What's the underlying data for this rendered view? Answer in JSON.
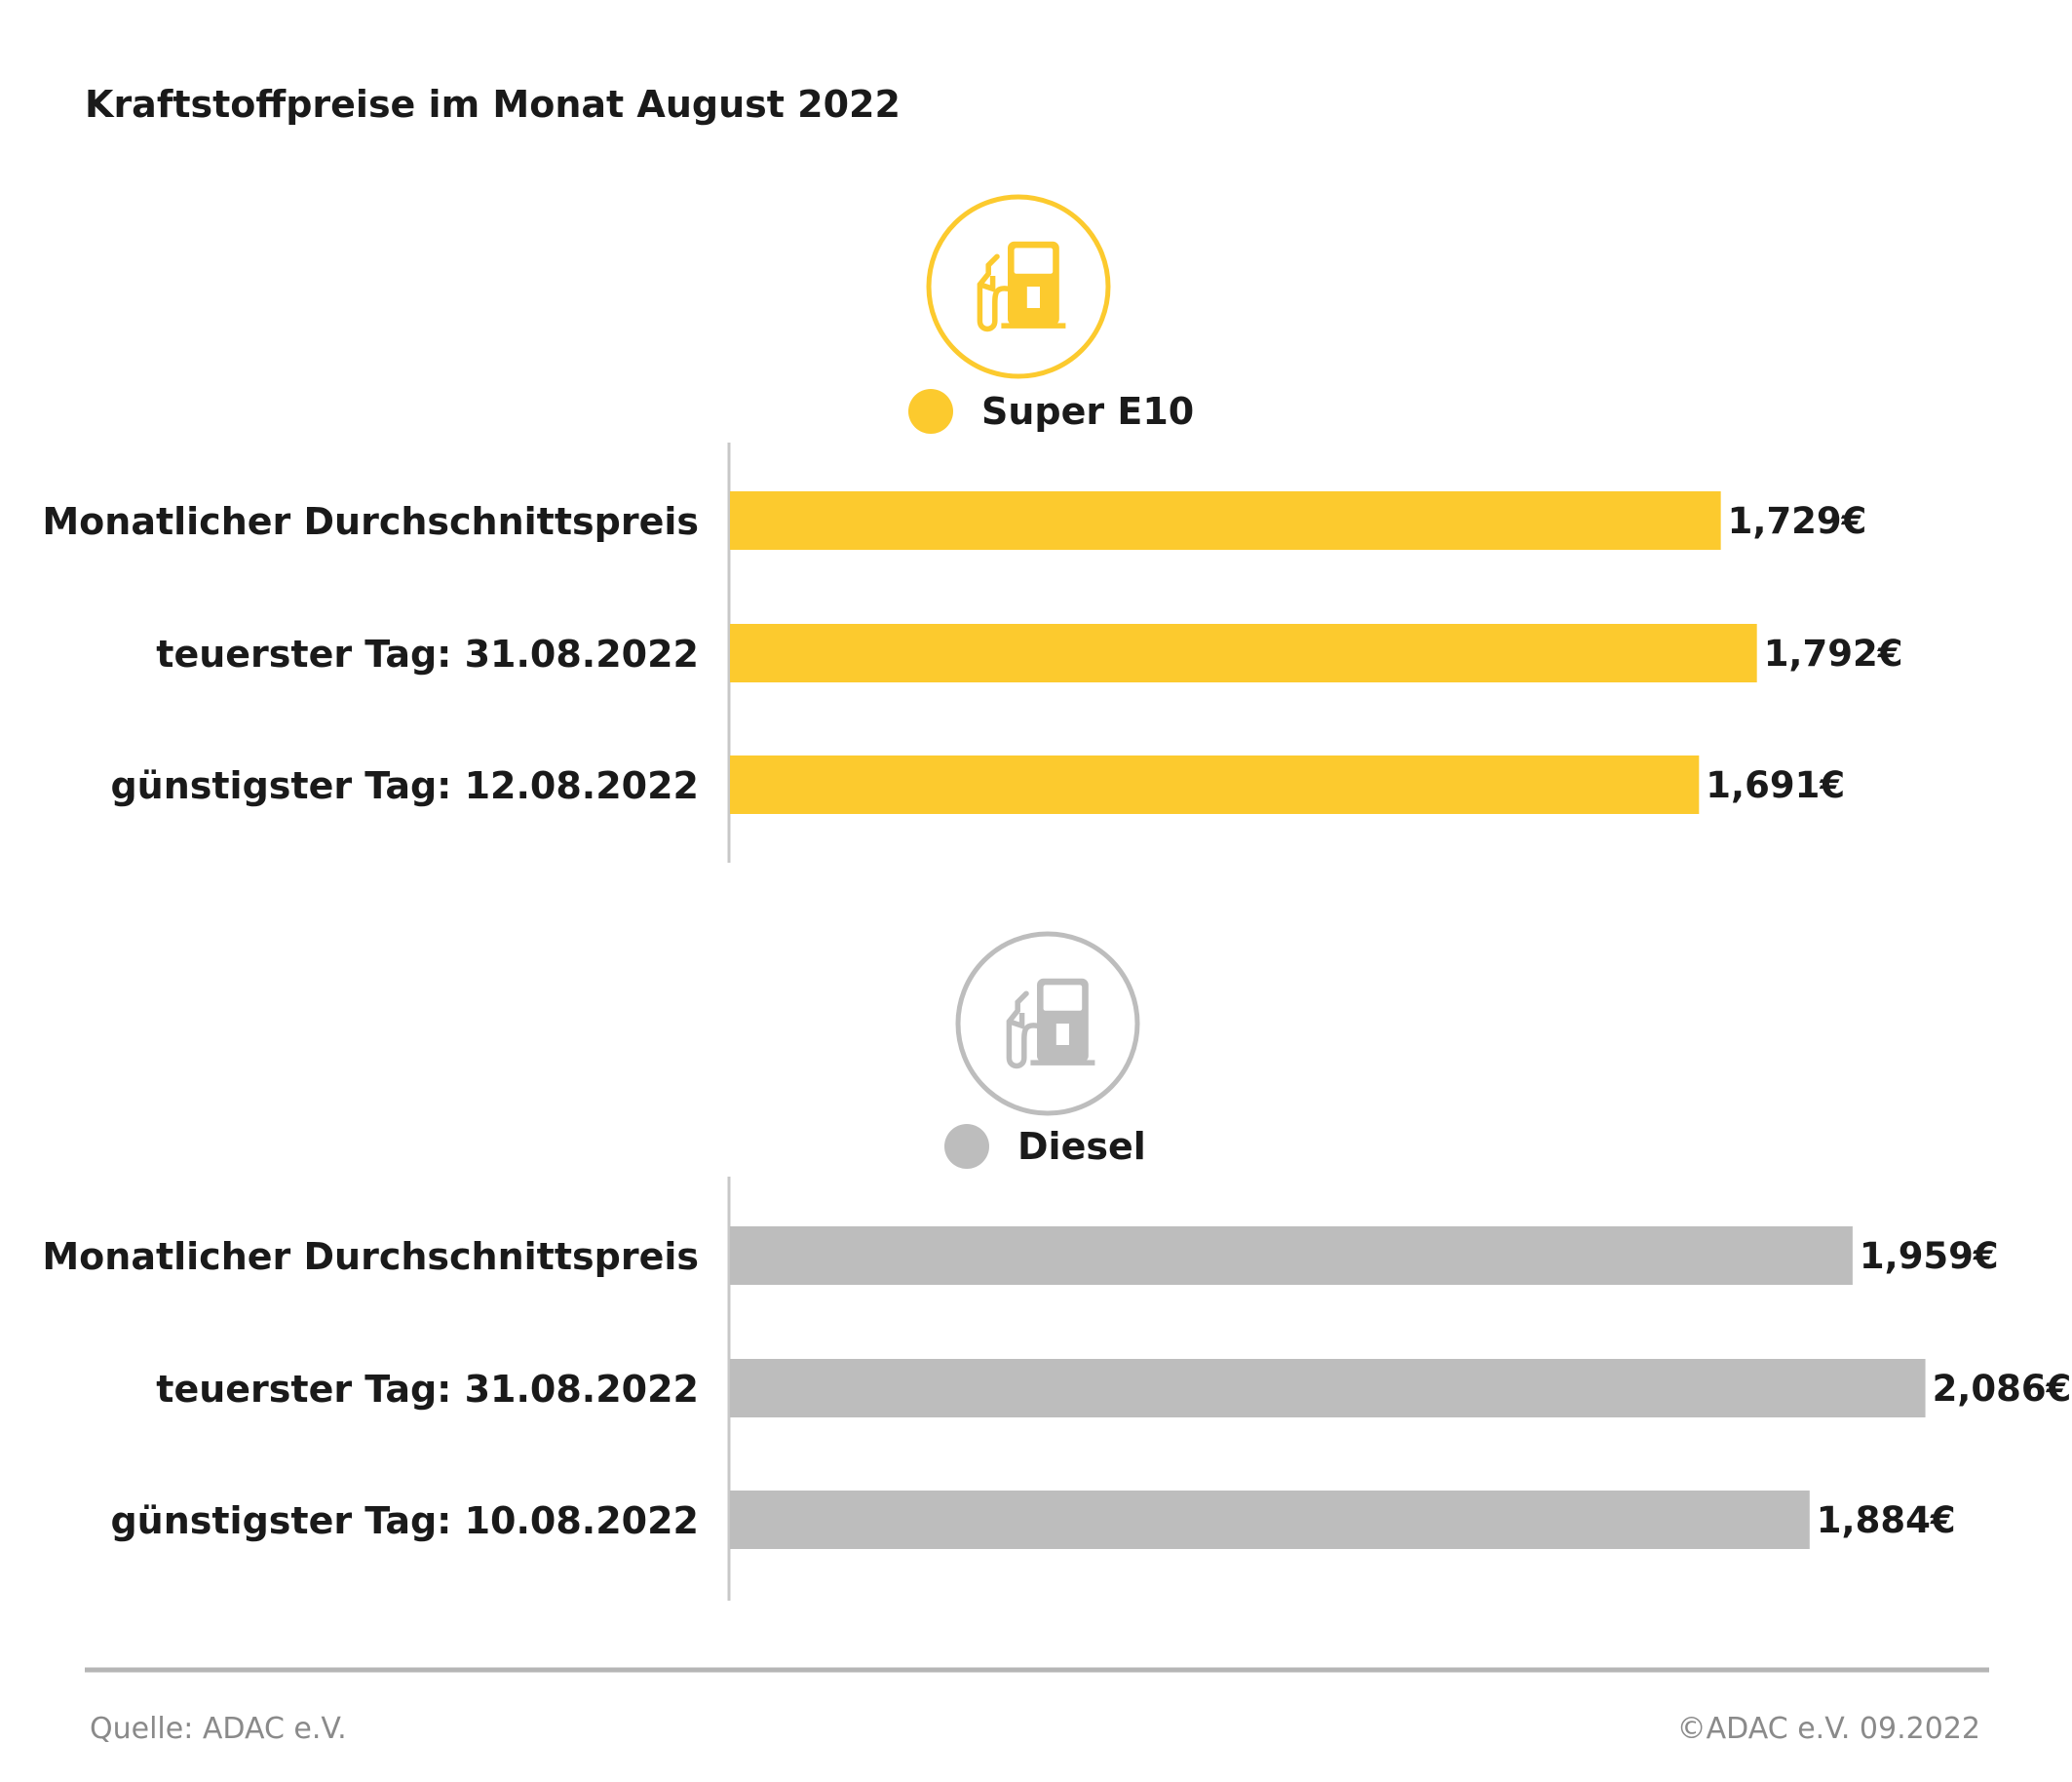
{
  "chart_data": {
    "type": "bar",
    "orientation": "horizontal",
    "title": "Kraftstoffpreise im Monat August 2022",
    "unit": "€",
    "xlim": [
      0,
      2.2
    ],
    "grid": false,
    "groups": [
      {
        "name": "Super E10",
        "icon": "fuel-pump-icon",
        "color": "#FCCA2E",
        "categories": [
          "Monatlicher Durchschnittspreis",
          "teuerster Tag: 31.08.2022",
          "günstigster Tag: 12.08.2022"
        ],
        "values": [
          1.729,
          1.792,
          1.691
        ],
        "labels": [
          "1,729€",
          "1,792€",
          "1,691€"
        ]
      },
      {
        "name": "Diesel",
        "icon": "fuel-pump-icon",
        "color": "#BDBDBD",
        "categories": [
          "Monatlicher Durchschnittspreis",
          "teuerster Tag: 31.08.2022",
          "günstigster Tag: 10.08.2022"
        ],
        "values": [
          1.959,
          2.086,
          1.884
        ],
        "labels": [
          "1,959€",
          "2,086€",
          "1,884€"
        ]
      }
    ]
  },
  "footer": {
    "source": "Quelle: ADAC e.V.",
    "copyright": "©ADAC e.V. 09.2022"
  }
}
